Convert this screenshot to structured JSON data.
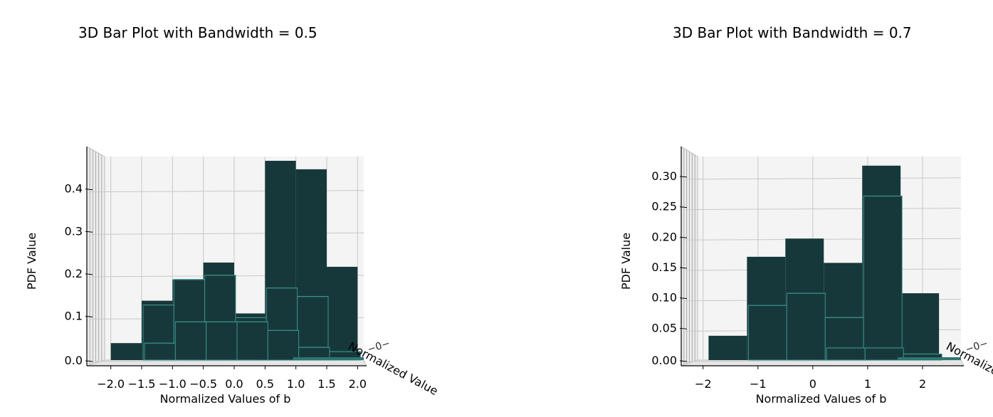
{
  "charts": [
    {
      "title": "3D Bar Plot with Bandwidth = 0.5",
      "xlabel": "Normalized Values of b",
      "ylabel": "PDF Value",
      "zlabel": "Normalized Value",
      "chart_data": {
        "type": "bar",
        "title": "3D Bar Plot with Bandwidth = 0.5",
        "xlabel": "Normalized Values of b",
        "ylabel": "PDF Value",
        "xlim": [
          -2.1,
          2.1
        ],
        "ylim": [
          0,
          0.48
        ],
        "xticks": [
          "−2.0",
          "−1.5",
          "−1.0",
          "−0.5",
          "0.0",
          "0.5",
          "1.0",
          "1.5",
          "2.0"
        ],
        "yticks": [
          "0.0",
          "0.1",
          "0.2",
          "0.3",
          "0.4"
        ],
        "bin_edges": [
          -2.0,
          -1.5,
          -1.0,
          -0.5,
          0.0,
          0.5,
          1.0,
          1.5
        ],
        "series": [
          {
            "values": [
              0.04,
              0.14,
              0.19,
              0.23,
              0.11,
              0.47,
              0.45,
              0.22
            ]
          },
          {
            "values": [
              0.0,
              0.13,
              0.19,
              0.2,
              0.1,
              0.17,
              0.15,
              0.0
            ]
          },
          {
            "values": [
              0.0,
              0.04,
              0.09,
              0.09,
              0.09,
              0.07,
              0.03,
              0.02
            ]
          }
        ],
        "colors": {
          "bar": "#17383a",
          "edge": "#3a8f8a"
        },
        "grid": true
      }
    },
    {
      "title": "3D Bar Plot with Bandwidth = 0.7",
      "xlabel": "Normalized Values of b",
      "ylabel": "PDF Value",
      "zlabel": "Normalized Value",
      "chart_data": {
        "type": "bar",
        "title": "3D Bar Plot with Bandwidth = 0.7",
        "xlabel": "Normalized Values of b",
        "ylabel": "PDF Value",
        "xlim": [
          -2.1,
          2.7
        ],
        "ylim": [
          0,
          0.335
        ],
        "xticks": [
          "−2",
          "−1",
          "0",
          "1",
          "2"
        ],
        "yticks": [
          "0.00",
          "0.05",
          "0.10",
          "0.15",
          "0.20",
          "0.25",
          "0.30"
        ],
        "bin_edges": [
          -1.9,
          -1.2,
          -0.5,
          0.2,
          0.9,
          1.6,
          2.3
        ],
        "series": [
          {
            "values": [
              0.04,
              0.17,
              0.2,
              0.16,
              0.32,
              0.11
            ]
          },
          {
            "values": [
              0.0,
              0.09,
              0.11,
              0.07,
              0.27,
              0.0
            ]
          },
          {
            "values": [
              0.0,
              0.0,
              0.0,
              0.02,
              0.02,
              0.01
            ]
          }
        ],
        "colors": {
          "bar": "#17383a",
          "edge": "#3a8f8a"
        },
        "grid": true
      }
    }
  ]
}
